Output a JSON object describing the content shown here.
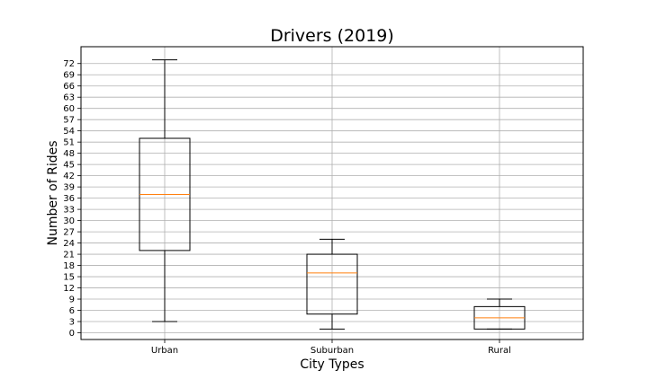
{
  "chart_data": {
    "type": "boxplot",
    "title": "Drivers (2019)",
    "xlabel": "City Types",
    "ylabel": "Number of Rides",
    "categories": [
      "Urban",
      "Suburban",
      "Rural"
    ],
    "boxes": [
      {
        "whisker_low": 3,
        "q1": 22,
        "median": 37,
        "q3": 52,
        "whisker_high": 73
      },
      {
        "whisker_low": 1,
        "q1": 5,
        "median": 16,
        "q3": 21,
        "whisker_high": 25
      },
      {
        "whisker_low": 1,
        "q1": 1,
        "median": 4,
        "q3": 7,
        "whisker_high": 9
      }
    ],
    "yticks": [
      0,
      3,
      6,
      9,
      12,
      15,
      18,
      21,
      24,
      27,
      30,
      33,
      36,
      39,
      42,
      45,
      48,
      51,
      54,
      57,
      60,
      63,
      66,
      69,
      72
    ],
    "ylim": [
      -1.8,
      76.5
    ],
    "grid": true,
    "colors": {
      "box": "#000000",
      "median": "#ff7f0e",
      "grid": "#b0b0b0"
    }
  }
}
